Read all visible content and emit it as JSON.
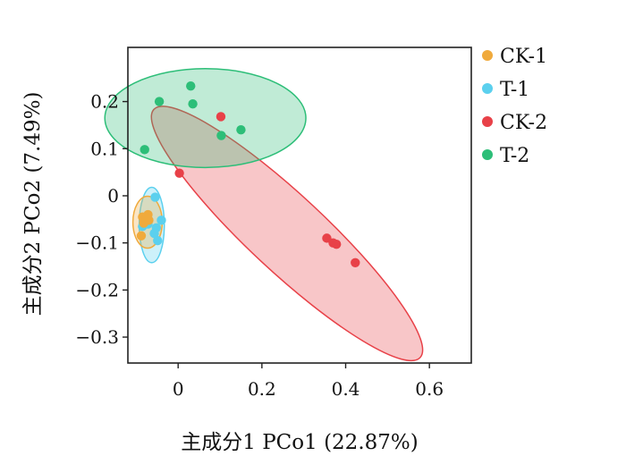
{
  "chart_data": {
    "type": "scatter",
    "title": "",
    "xlabel": "主成分1 PCo1 (22.87%)",
    "ylabel": "主成分2 PCo2 (7.49%)",
    "xlim": [
      -0.12,
      0.7
    ],
    "ylim": [
      -0.355,
      0.315
    ],
    "x_ticks": [
      0,
      0.2,
      0.4,
      0.6
    ],
    "x_tick_labels": [
      "0",
      "0.2",
      "0.4",
      "0.6"
    ],
    "y_ticks": [
      0.2,
      0.1,
      0,
      -0.1,
      -0.2,
      -0.3
    ],
    "y_tick_labels": [
      "0.2",
      "0.1",
      "0",
      "−0.1",
      "−0.2",
      "−0.3"
    ],
    "grid": false,
    "legend_position": "right",
    "series": [
      {
        "name": "CK-1",
        "color": "#F0AA3C",
        "ellipse": {
          "cx": -0.073,
          "cy": -0.056,
          "rx": 0.035,
          "ry": 0.055,
          "angle": 0
        },
        "points": [
          {
            "x": -0.085,
            "y": -0.045
          },
          {
            "x": -0.078,
            "y": -0.048
          },
          {
            "x": -0.072,
            "y": -0.04
          },
          {
            "x": -0.082,
            "y": -0.058
          },
          {
            "x": -0.07,
            "y": -0.052
          },
          {
            "x": -0.088,
            "y": -0.085
          }
        ]
      },
      {
        "name": "T-1",
        "color": "#5BD0EE",
        "ellipse": {
          "cx": -0.063,
          "cy": -0.062,
          "rx": 0.03,
          "ry": 0.08,
          "angle": 0
        },
        "points": [
          {
            "x": -0.055,
            "y": -0.003
          },
          {
            "x": -0.04,
            "y": -0.052
          },
          {
            "x": -0.052,
            "y": -0.068
          },
          {
            "x": -0.057,
            "y": -0.08
          },
          {
            "x": -0.049,
            "y": -0.095
          },
          {
            "x": -0.085,
            "y": -0.065
          },
          {
            "x": -0.072,
            "y": -0.06
          }
        ]
      },
      {
        "name": "CK-2",
        "color": "#E84148",
        "ellipse": {
          "cx": 0.26,
          "cy": -0.08,
          "rx": 0.41,
          "ry": 0.085,
          "angle": 43
        },
        "points": [
          {
            "x": 0.003,
            "y": 0.048
          },
          {
            "x": 0.102,
            "y": 0.168
          },
          {
            "x": 0.355,
            "y": -0.09
          },
          {
            "x": 0.37,
            "y": -0.1
          },
          {
            "x": 0.378,
            "y": -0.103
          },
          {
            "x": 0.423,
            "y": -0.142
          }
        ]
      },
      {
        "name": "T-2",
        "color": "#2DBE78",
        "ellipse": {
          "cx": 0.065,
          "cy": 0.165,
          "rx": 0.24,
          "ry": 0.105,
          "angle": 0
        },
        "points": [
          {
            "x": 0.03,
            "y": 0.233
          },
          {
            "x": -0.045,
            "y": 0.2
          },
          {
            "x": 0.035,
            "y": 0.195
          },
          {
            "x": 0.15,
            "y": 0.14
          },
          {
            "x": 0.103,
            "y": 0.128
          },
          {
            "x": -0.08,
            "y": 0.098
          }
        ]
      }
    ]
  }
}
